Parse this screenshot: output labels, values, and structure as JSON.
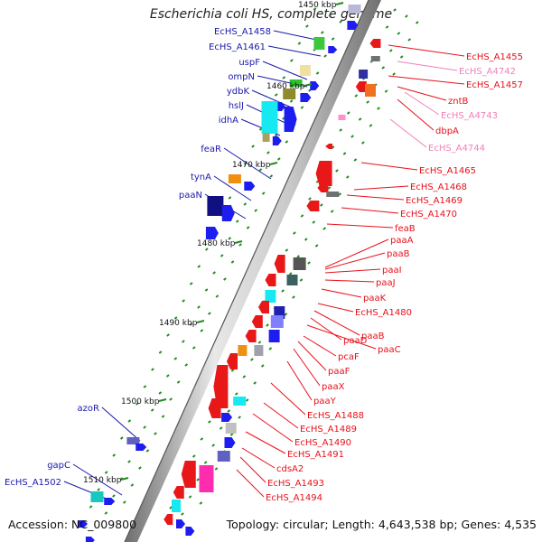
{
  "title": "Escherichia coli HS, complete genome",
  "footer": {
    "accession": "Accession: NC_009800",
    "topology": "Topology: circular; Length: 4,643,538 bp; Genes: 4,535"
  },
  "colors": {
    "left_label": "#1a1aaa",
    "right_label": "#e8101a",
    "right_label_light": "#f080b8",
    "backbone": "#9a9a9a",
    "tick": "#228b22"
  },
  "kbp_ticks": [
    {
      "label": "1450 kbp"
    },
    {
      "label": "1460 kbp"
    },
    {
      "label": "1470 kbp"
    },
    {
      "label": "1480 kbp"
    },
    {
      "label": "1490 kbp"
    },
    {
      "label": "1500 kbp"
    },
    {
      "label": "1510 kbp"
    }
  ],
  "left_labels": [
    "EcHS_A1458",
    "EcHS_A1461",
    "uspF",
    "ompN",
    "ydbK",
    "hslJ",
    "idhA",
    "feaR",
    "tynA",
    "paaN",
    "azoR",
    "gapC",
    "EcHS_A1502"
  ],
  "right_labels": [
    "EcHS_A1455",
    "EcHS_A4742",
    "EcHS_A1457",
    "zntB",
    "EcHS_A4743",
    "dbpA",
    "EcHS_A4744",
    "EcHS_A1465",
    "EcHS_A1468",
    "EcHS_A1469",
    "EcHS_A1470",
    "feaB",
    "paaA",
    "paaB",
    "paaI",
    "paaJ",
    "paaK",
    "EcHS_A1480",
    "paaB",
    "paaD",
    "paaC",
    "pcaF",
    "paaF",
    "paaX",
    "paaY",
    "EcHS_A1488",
    "EcHS_A1489",
    "EcHS_A1490",
    "EcHS_A1491",
    "cdsA2",
    "EcHS_A1493",
    "EcHS_A1494"
  ]
}
